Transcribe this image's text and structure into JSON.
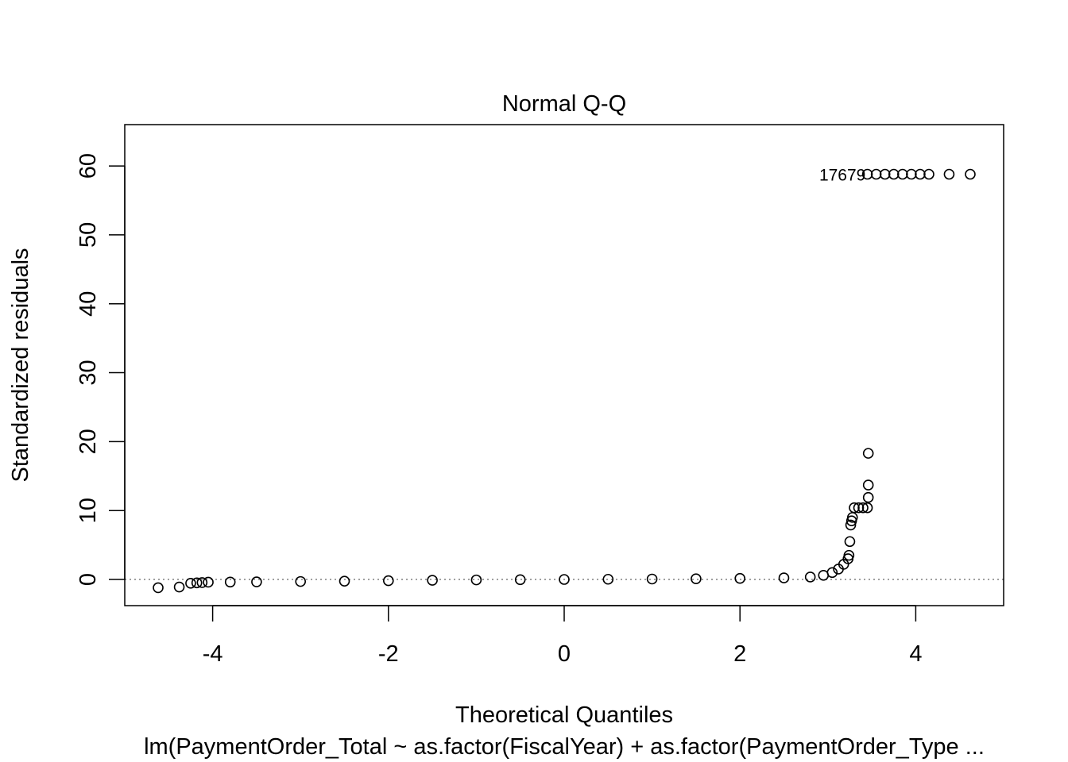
{
  "chart_data": {
    "type": "scatter",
    "title": "Normal Q-Q",
    "xlabel": "Theoretical Quantiles",
    "ylabel": "Standardized residuals",
    "subtitle": "lm(PaymentOrder_Total ~ as.factor(FiscalYear) + as.factor(PaymentOrder_Type ...",
    "xlim": [
      -5.0,
      5.0
    ],
    "ylim": [
      -3.8,
      66.0
    ],
    "x_ticks": [
      -4,
      -2,
      0,
      2,
      4
    ],
    "y_ticks": [
      0,
      10,
      20,
      30,
      40,
      50,
      60
    ],
    "reference_line": {
      "y": 0,
      "style": "dotted",
      "color": "#808080"
    },
    "point_annotation": "17679",
    "marker": {
      "shape": "open-circle",
      "color": "#000000"
    },
    "series": [
      {
        "points": [
          [
            -4.62,
            -1.2
          ],
          [
            -4.38,
            -1.1
          ],
          [
            -4.25,
            -0.55
          ],
          [
            -4.18,
            -0.5
          ],
          [
            -4.12,
            -0.45
          ],
          [
            -4.05,
            -0.4
          ],
          [
            -3.8,
            -0.38
          ],
          [
            -3.5,
            -0.35
          ],
          [
            -3.0,
            -0.3
          ],
          [
            -2.5,
            -0.25
          ],
          [
            -2.0,
            -0.18
          ],
          [
            -1.5,
            -0.12
          ],
          [
            -1.0,
            -0.07
          ],
          [
            -0.5,
            -0.03
          ],
          [
            0.0,
            0.0
          ],
          [
            0.5,
            0.03
          ],
          [
            1.0,
            0.06
          ],
          [
            1.5,
            0.1
          ],
          [
            2.0,
            0.15
          ],
          [
            2.5,
            0.22
          ],
          [
            2.8,
            0.35
          ],
          [
            2.95,
            0.6
          ],
          [
            3.05,
            1.0
          ],
          [
            3.12,
            1.5
          ],
          [
            3.18,
            2.2
          ],
          [
            3.23,
            3.0
          ],
          [
            3.24,
            3.5
          ],
          [
            3.25,
            5.5
          ],
          [
            3.26,
            7.9
          ],
          [
            3.27,
            8.5
          ],
          [
            3.28,
            9.0
          ],
          [
            3.3,
            10.4
          ],
          [
            3.35,
            10.4
          ],
          [
            3.4,
            10.4
          ],
          [
            3.45,
            10.4
          ],
          [
            3.46,
            11.9
          ],
          [
            3.46,
            13.7
          ],
          [
            3.46,
            18.3
          ],
          [
            3.45,
            58.8
          ],
          [
            3.55,
            58.8
          ],
          [
            3.65,
            58.8
          ],
          [
            3.75,
            58.8
          ],
          [
            3.85,
            58.8
          ],
          [
            3.95,
            58.8
          ],
          [
            4.05,
            58.8
          ],
          [
            4.15,
            58.8
          ],
          [
            4.38,
            58.8
          ],
          [
            4.62,
            58.8
          ]
        ]
      }
    ]
  }
}
